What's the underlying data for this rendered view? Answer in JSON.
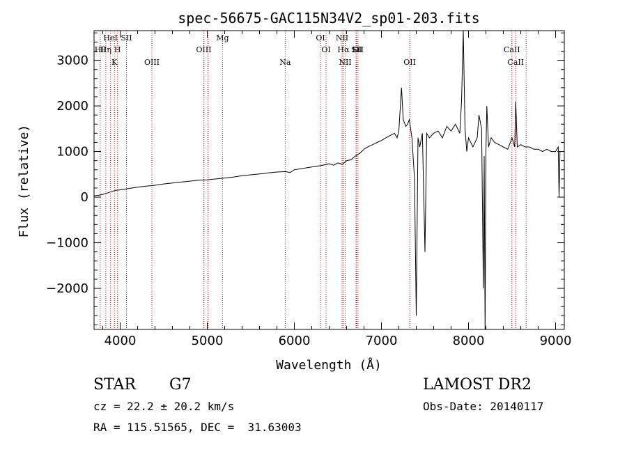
{
  "chart_data": {
    "type": "line",
    "title": "spec-56675-GAC115N34V2_sp01-203.fits",
    "xlabel": "Wavelength (Å)",
    "ylabel": "Flux (relative)",
    "xlim": [
      3700,
      9100
    ],
    "ylim": [
      -2900,
      3650
    ],
    "x_ticks": [
      4000,
      5000,
      6000,
      7000,
      8000,
      9000
    ],
    "y_ticks": [
      -2000,
      -1000,
      0,
      1000,
      2000,
      3000
    ],
    "grid": false,
    "line_color": "#000000",
    "marker_color": "#cc0000",
    "series": [
      {
        "x": [
          3700,
          3750,
          3800,
          3850,
          3900,
          3950,
          4000,
          4100,
          4200,
          4300,
          4400,
          4500,
          4600,
          4700,
          4800,
          4900,
          5000,
          5100,
          5200,
          5300,
          5400,
          5500,
          5600,
          5700,
          5800,
          5900,
          5950,
          6000,
          6100,
          6200,
          6300,
          6400,
          6450,
          6500,
          6550,
          6600,
          6650,
          6700,
          6750,
          6800,
          6850,
          6900,
          6950,
          7000,
          7050,
          7100,
          7150,
          7180,
          7200,
          7230,
          7250,
          7280,
          7300,
          7320,
          7350,
          7380,
          7400,
          7420,
          7440,
          7470,
          7500,
          7520,
          7550,
          7600,
          7650,
          7700,
          7750,
          7800,
          7850,
          7900,
          7920,
          7940,
          7960,
          7980,
          8000,
          8050,
          8100,
          8120,
          8150,
          8170,
          8180,
          8190,
          8200,
          8210,
          8230,
          8260,
          8300,
          8350,
          8400,
          8450,
          8500,
          8530,
          8542,
          8560,
          8600,
          8650,
          8700,
          8750,
          8800,
          8850,
          8900,
          8950,
          9000,
          9030,
          9040,
          9050
        ],
        "y": [
          30,
          40,
          60,
          90,
          120,
          150,
          160,
          190,
          220,
          240,
          260,
          290,
          310,
          330,
          350,
          370,
          380,
          400,
          420,
          440,
          470,
          490,
          510,
          530,
          550,
          560,
          540,
          600,
          630,
          660,
          690,
          730,
          700,
          750,
          720,
          800,
          820,
          900,
          960,
          1050,
          1110,
          1150,
          1200,
          1240,
          1300,
          1350,
          1400,
          1300,
          1450,
          2400,
          1700,
          1550,
          1600,
          1700,
          1300,
          400,
          -2600,
          1300,
          1100,
          1400,
          -1200,
          1400,
          1300,
          1400,
          1450,
          1300,
          1550,
          1450,
          1600,
          1400,
          2100,
          3650,
          1500,
          1000,
          1300,
          1100,
          1300,
          1800,
          1500,
          -2000,
          900,
          -3000,
          1000,
          2000,
          1100,
          1300,
          1200,
          1150,
          1100,
          1050,
          1300,
          1100,
          2100,
          1100,
          1150,
          1100,
          1100,
          1050,
          1050,
          1000,
          1050,
          1000,
          1000,
          1100,
          0,
          1000
        ]
      }
    ],
    "lines": [
      {
        "x": 3771,
        "label": "Hθ"
      },
      {
        "x": 3835,
        "label": "Hη"
      },
      {
        "x": 3889,
        "label": "HeI"
      },
      {
        "x": 3934,
        "label": "K"
      },
      {
        "x": 3969,
        "label": "H"
      },
      {
        "x": 4072,
        "label": "SII"
      },
      {
        "x": 4364,
        "label": "OIII"
      },
      {
        "x": 4960,
        "label": "OIII"
      },
      {
        "x": 5008,
        "label": ""
      },
      {
        "x": 5175,
        "label": "Mg"
      },
      {
        "x": 5895,
        "label": "Na"
      },
      {
        "x": 6300,
        "label": "OI"
      },
      {
        "x": 6364,
        "label": "OI"
      },
      {
        "x": 6548,
        "label": "NII"
      },
      {
        "x": 6563,
        "label": "Hα"
      },
      {
        "x": 6584,
        "label": "NII"
      },
      {
        "x": 6708,
        "label": "Li"
      },
      {
        "x": 6716,
        "label": "SII"
      },
      {
        "x": 6731,
        "label": "SII"
      },
      {
        "x": 7325,
        "label": "OII"
      },
      {
        "x": 8498,
        "label": "CaII"
      },
      {
        "x": 8542,
        "label": "CaII"
      },
      {
        "x": 8662,
        "label": ""
      }
    ]
  },
  "info": {
    "object_class": "STAR",
    "subclass": "G7",
    "survey": "LAMOST DR2",
    "redshift": "cz = 22.2 ± 20.2 km/s",
    "obs_date": "Obs-Date: 20140117",
    "coords": "RA = 115.51565, DEC =  31.63003"
  }
}
